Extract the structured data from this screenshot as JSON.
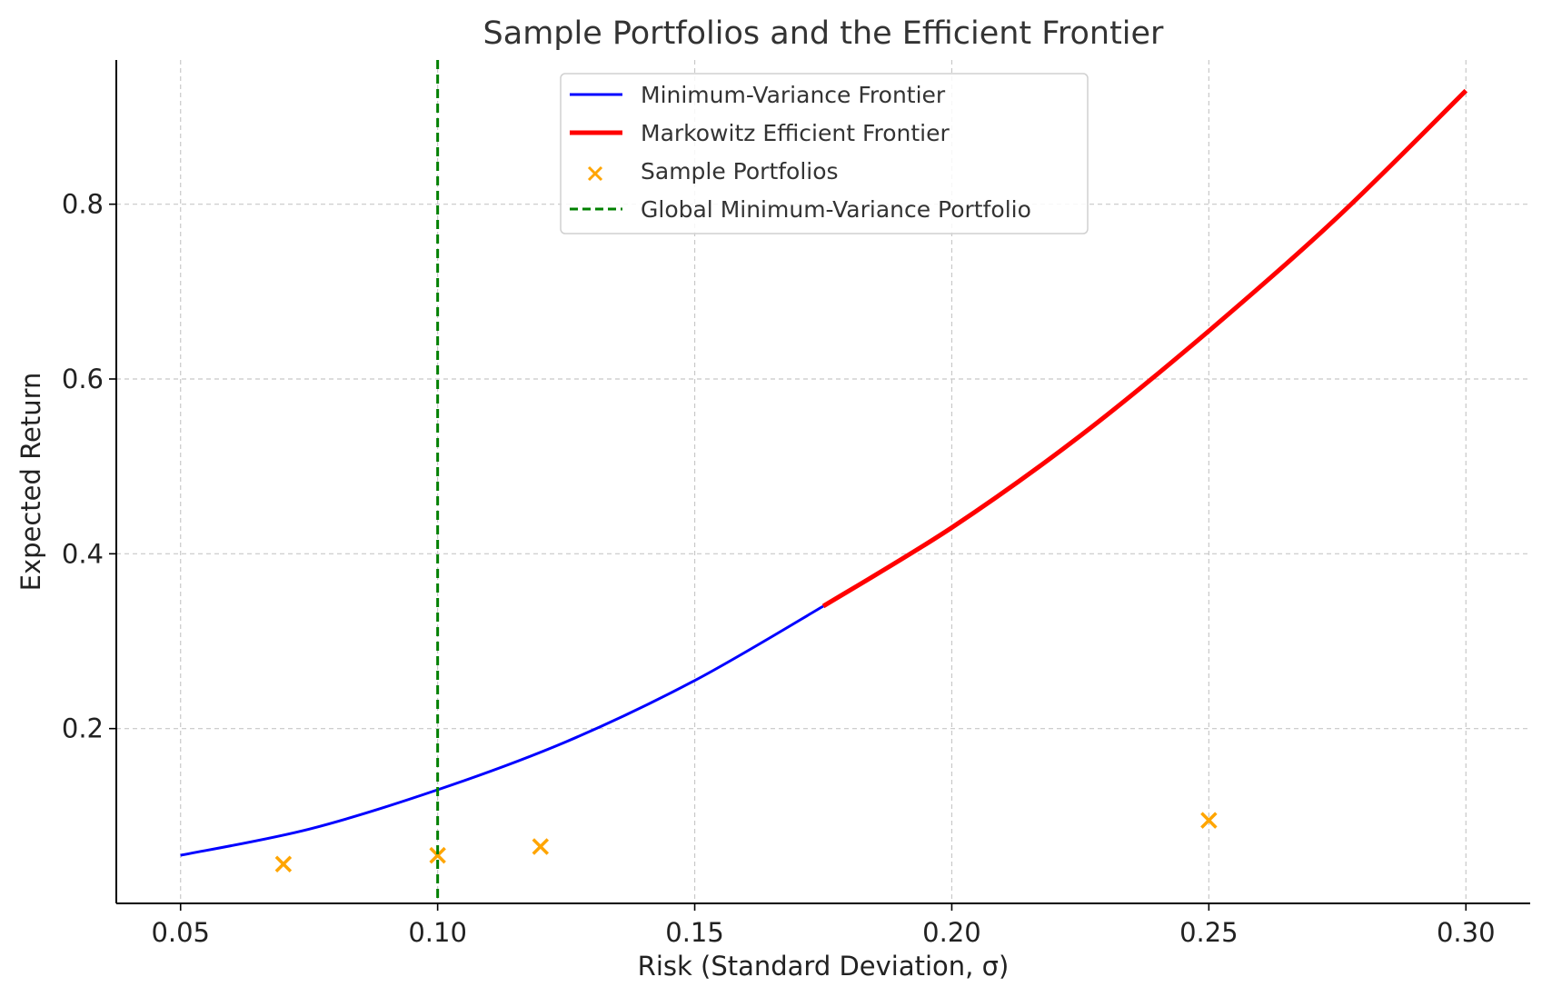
{
  "chart_data": {
    "type": "line",
    "title": "Sample Portfolios and the Efficient Frontier",
    "xlabel": "Risk (Standard Deviation, σ)",
    "ylabel": "Expected Return",
    "xlim": [
      0.0375,
      0.3125
    ],
    "ylim": [
      0.0,
      0.965
    ],
    "x_ticks": [
      0.05,
      0.1,
      0.15,
      0.2,
      0.25,
      0.3
    ],
    "x_tick_labels": [
      "0.05",
      "0.10",
      "0.15",
      "0.20",
      "0.25",
      "0.30"
    ],
    "y_ticks": [
      0.2,
      0.4,
      0.6,
      0.8
    ],
    "y_tick_labels": [
      "0.2",
      "0.4",
      "0.6",
      "0.8"
    ],
    "grid": true,
    "legend_position": "top-center",
    "series": [
      {
        "name": "Minimum-Variance Frontier",
        "kind": "line",
        "color": "#0000ff",
        "x": [
          0.05,
          0.075,
          0.1,
          0.125,
          0.15,
          0.175
        ],
        "y": [
          0.055,
          0.085,
          0.13,
          0.185,
          0.255,
          0.34
        ]
      },
      {
        "name": "Markowitz Efficient Frontier",
        "kind": "line",
        "color": "#ff0000",
        "x": [
          0.175,
          0.2,
          0.225,
          0.25,
          0.275,
          0.3
        ],
        "y": [
          0.34,
          0.43,
          0.535,
          0.655,
          0.785,
          0.93
        ]
      },
      {
        "name": "Sample Portfolios",
        "kind": "scatter",
        "color": "#ffa500",
        "x": [
          0.07,
          0.1,
          0.12,
          0.25
        ],
        "y": [
          0.045,
          0.055,
          0.065,
          0.095
        ]
      },
      {
        "name": "Global Minimum-Variance Portfolio",
        "kind": "vline",
        "color": "#008000",
        "x": 0.1
      }
    ]
  }
}
